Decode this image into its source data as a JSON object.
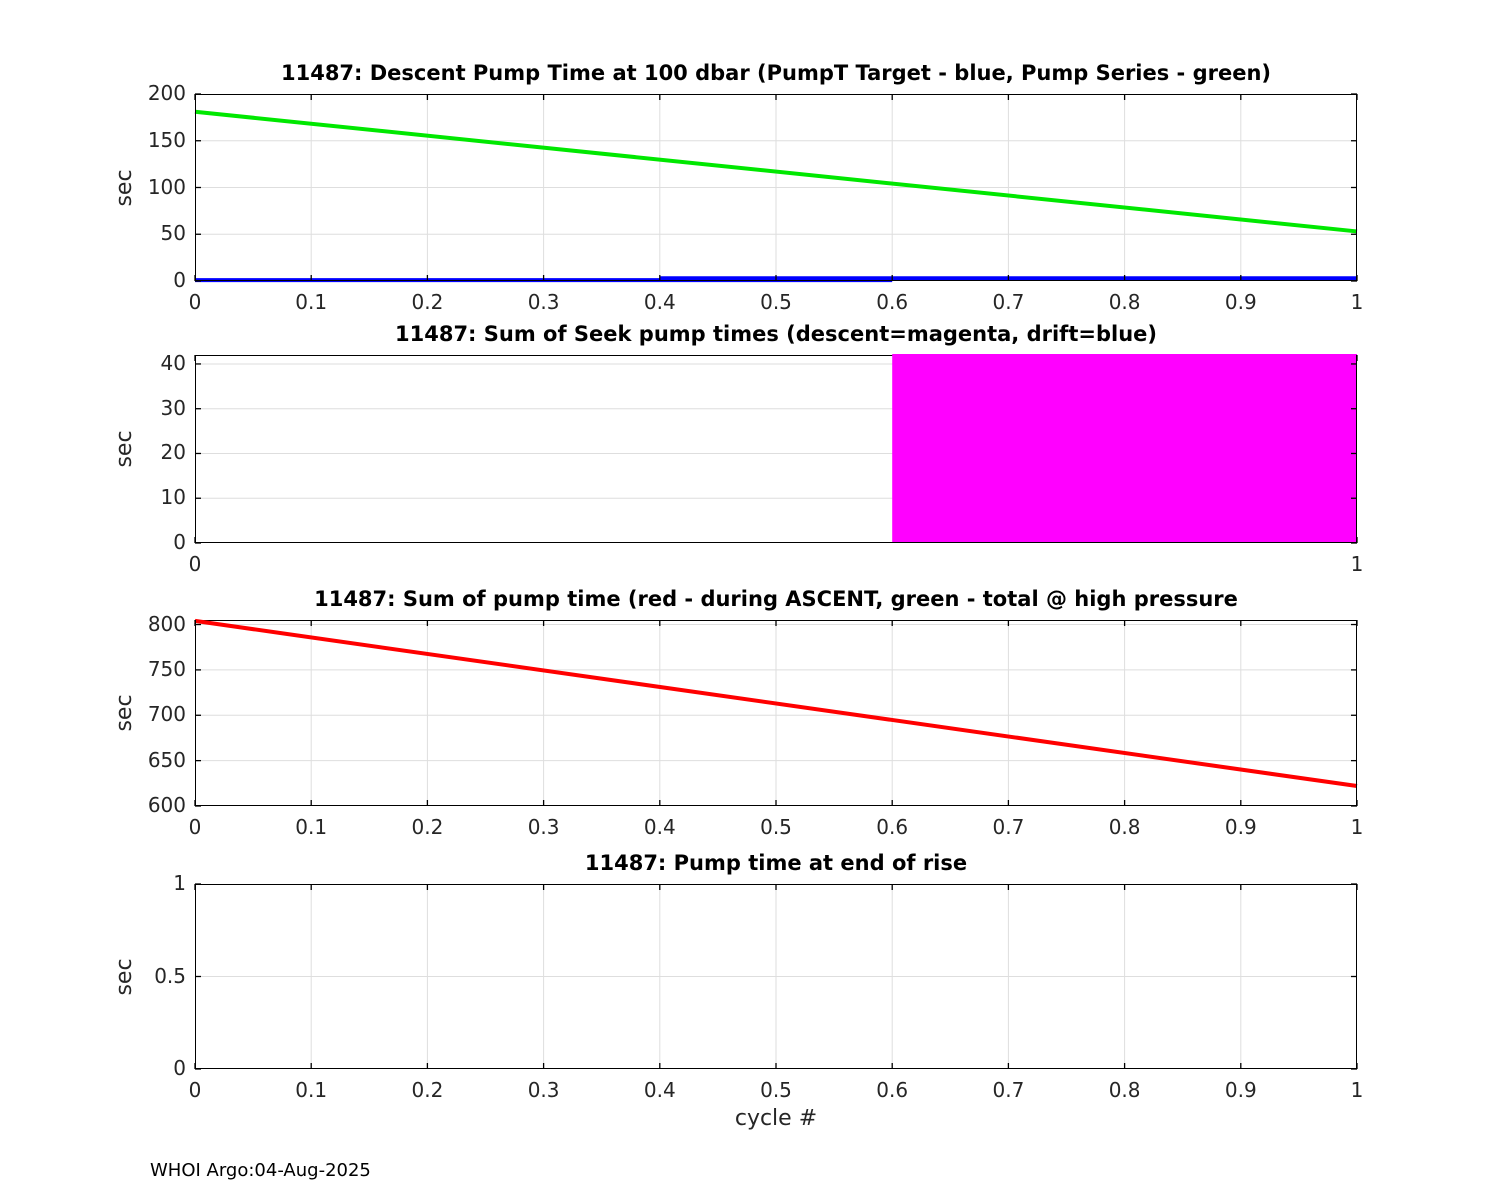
{
  "figure": {
    "footer": "WHOI Argo:04-Aug-2025",
    "background": "#ffffff",
    "spine_color": "#000000",
    "grid_color": "#dedede",
    "tick_color": "#262626"
  },
  "chart_data": [
    {
      "type": "line",
      "title": "11487: Descent Pump Time at 100 dbar (PumpT Target - blue, Pump Series - green)",
      "ylabel": "sec",
      "xlabel": "",
      "xlim": [
        0,
        1
      ],
      "ylim": [
        0,
        200
      ],
      "xticks": [
        0,
        0.1,
        0.2,
        0.3,
        0.4,
        0.5,
        0.6,
        0.7,
        0.8,
        0.9,
        1
      ],
      "xtick_labels": [
        "0",
        "0.1",
        "0.2",
        "0.3",
        "0.4",
        "0.5",
        "0.6",
        "0.7",
        "0.8",
        "0.9",
        "1"
      ],
      "yticks": [
        0,
        50,
        100,
        150,
        200
      ],
      "ytick_labels": [
        "0",
        "50",
        "100",
        "150",
        "200"
      ],
      "grid": true,
      "legend_note": "PumpT Target = blue, Pump Series = green",
      "series": [
        {
          "name": "pump-series-green",
          "type": "line",
          "color": "#00e800",
          "width": 4,
          "x": [
            0,
            1
          ],
          "y": [
            181,
            53
          ]
        },
        {
          "name": "pumpt-target-blue-low",
          "type": "line",
          "color": "#0000ff",
          "width": 4,
          "x": [
            0,
            0.6
          ],
          "y": [
            1,
            1
          ]
        },
        {
          "name": "pumpt-target-blue-high",
          "type": "line",
          "color": "#0000ff",
          "width": 4,
          "x": [
            0.4,
            1
          ],
          "y": [
            3,
            3
          ]
        }
      ]
    },
    {
      "type": "area",
      "title": "11487: Sum of Seek pump times (descent=magenta, drift=blue)",
      "ylabel": "sec",
      "xlabel": "",
      "xlim": [
        0,
        1
      ],
      "ylim": [
        0,
        42
      ],
      "xticks": [
        0,
        1
      ],
      "xtick_labels": [
        "0",
        "1"
      ],
      "yticks": [
        0,
        10,
        20,
        30,
        40
      ],
      "ytick_labels": [
        "0",
        "10",
        "20",
        "30",
        "40"
      ],
      "grid": true,
      "legend_note": "descent = magenta, drift = blue",
      "series": [
        {
          "name": "descent-seek-pump-time",
          "type": "rect",
          "color": "#ff00ff",
          "x": [
            0.6,
            1
          ],
          "y": [
            0,
            42
          ]
        }
      ]
    },
    {
      "type": "line",
      "title": "11487: Sum of pump time (red - during ASCENT, green - total @ high pressure",
      "ylabel": "sec",
      "xlabel": "",
      "xlim": [
        0,
        1
      ],
      "ylim": [
        600,
        805
      ],
      "xticks": [
        0,
        0.1,
        0.2,
        0.3,
        0.4,
        0.5,
        0.6,
        0.7,
        0.8,
        0.9,
        1
      ],
      "xtick_labels": [
        "0",
        "0.1",
        "0.2",
        "0.3",
        "0.4",
        "0.5",
        "0.6",
        "0.7",
        "0.8",
        "0.9",
        "1"
      ],
      "yticks": [
        600,
        650,
        700,
        750,
        800
      ],
      "ytick_labels": [
        "600",
        "650",
        "700",
        "750",
        "800"
      ],
      "grid": true,
      "legend_note": "red = during ASCENT, green = total @ high pressure",
      "series": [
        {
          "name": "sum-pump-time-ascent-red",
          "type": "line",
          "color": "#ff0000",
          "width": 4,
          "x": [
            0,
            1
          ],
          "y": [
            804,
            622
          ]
        }
      ]
    },
    {
      "type": "line",
      "title": "11487: Pump time at end of rise",
      "ylabel": "sec",
      "xlabel": "cycle #",
      "xlim": [
        0,
        1
      ],
      "ylim": [
        0,
        1
      ],
      "xticks": [
        0,
        0.1,
        0.2,
        0.3,
        0.4,
        0.5,
        0.6,
        0.7,
        0.8,
        0.9,
        1
      ],
      "xtick_labels": [
        "0",
        "0.1",
        "0.2",
        "0.3",
        "0.4",
        "0.5",
        "0.6",
        "0.7",
        "0.8",
        "0.9",
        "1"
      ],
      "yticks": [
        0,
        0.5,
        1
      ],
      "ytick_labels": [
        "0",
        "0.5",
        "1"
      ],
      "grid": true,
      "legend_note": "",
      "series": []
    }
  ]
}
